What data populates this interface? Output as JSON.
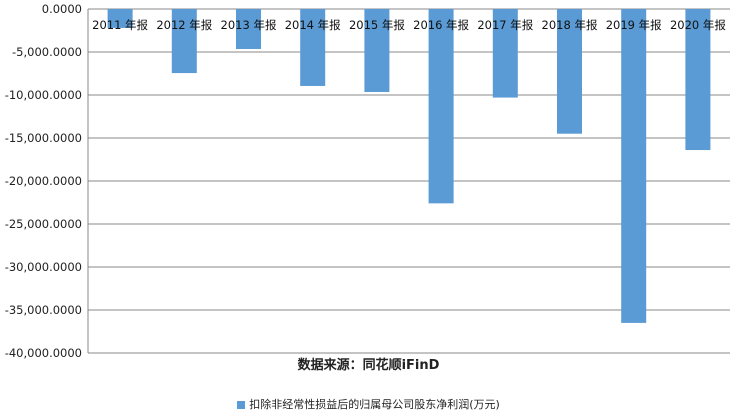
{
  "chart_data": {
    "type": "bar",
    "categories": [
      "2011 年报",
      "2012 年报",
      "2013 年报",
      "2014 年报",
      "2015 年报",
      "2016 年报",
      "2017 年报",
      "2018 年报",
      "2019 年报",
      "2020 年报"
    ],
    "series": [
      {
        "name": "扣除非经常性损益后的归属母公司股东净利润(万元)",
        "values": [
          -2200,
          -7450,
          -4650,
          -8950,
          -9650,
          -22600,
          -10300,
          -14500,
          -36500,
          -16400
        ],
        "color": "#5b9bd5"
      }
    ],
    "ylim": [
      -40000,
      0
    ],
    "yticks": [
      "0.0000",
      "-5,000.0000",
      "-10,000.0000",
      "-15,000.0000",
      "-20,000.0000",
      "-25,000.0000",
      "-30,000.0000",
      "-35,000.0000",
      "-40,000.0000"
    ],
    "ytick_values": [
      0,
      -5000,
      -10000,
      -15000,
      -20000,
      -25000,
      -30000,
      -35000,
      -40000
    ],
    "grid": true,
    "legend": "bottom",
    "source": "数据来源：同花顺iFinD"
  }
}
